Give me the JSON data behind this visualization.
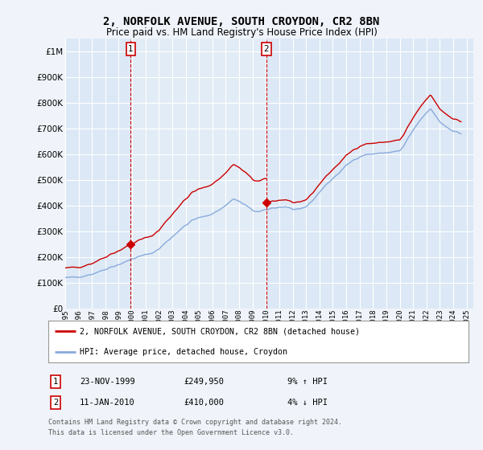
{
  "title": "2, NORFOLK AVENUE, SOUTH CROYDON, CR2 8BN",
  "subtitle": "Price paid vs. HM Land Registry's House Price Index (HPI)",
  "legend_line1": "2, NORFOLK AVENUE, SOUTH CROYDON, CR2 8BN (detached house)",
  "legend_line2": "HPI: Average price, detached house, Croydon",
  "table_rows": [
    {
      "num": "1",
      "date": "23-NOV-1999",
      "price": "£249,950",
      "hpi": "9% ↑ HPI"
    },
    {
      "num": "2",
      "date": "11-JAN-2010",
      "price": "£410,000",
      "hpi": "4% ↓ HPI"
    }
  ],
  "footnote1": "Contains HM Land Registry data © Crown copyright and database right 2024.",
  "footnote2": "This data is licensed under the Open Government Licence v3.0.",
  "sale1_year": 1999.9,
  "sale1_price": 249950,
  "sale2_year": 2010.04,
  "sale2_price": 410000,
  "background_color": "#f0f4fa",
  "plot_bg_color": "#dce8f5",
  "highlight_bg": "#e8f0f8",
  "red_color": "#cc0000",
  "blue_color": "#88aadd",
  "grid_color": "#c8d8e8",
  "ylim": [
    0,
    1050000
  ],
  "xlim_start": 1995.0,
  "xlim_end": 2025.5
}
